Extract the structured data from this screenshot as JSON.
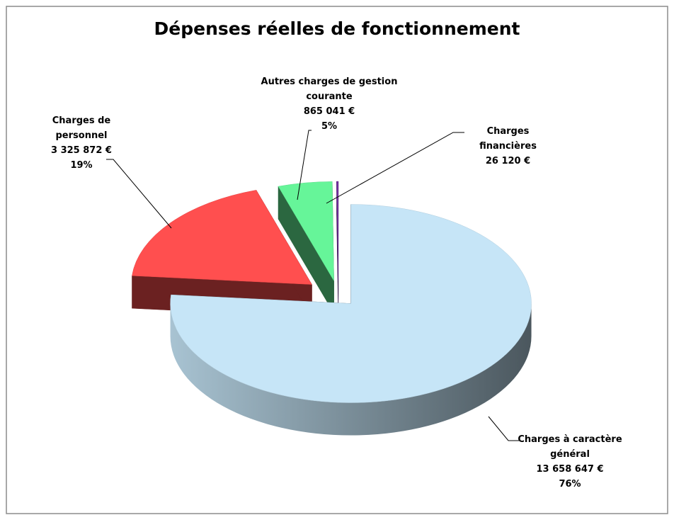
{
  "chart_data": {
    "type": "pie3d",
    "title": "Dépenses réelles de fonctionnement",
    "categories": [
      "Charges à caractère général",
      "Charges de personnel",
      "Autres charges de gestion courante",
      "Charges financières"
    ],
    "values": [
      13658647,
      3325872,
      865041,
      26120
    ],
    "value_labels": [
      "13 658 647 €",
      "3 325 872 €",
      "865 041 €",
      "26 120 €"
    ],
    "percentages": [
      {
        "value": 76,
        "label": "76%"
      },
      {
        "value": 19,
        "label": "19%"
      },
      {
        "value": 5,
        "label": "5%"
      },
      null
    ],
    "colors": [
      "#c6e5f7",
      "#ff4f4f",
      "#66f599",
      "#7030a0"
    ]
  }
}
